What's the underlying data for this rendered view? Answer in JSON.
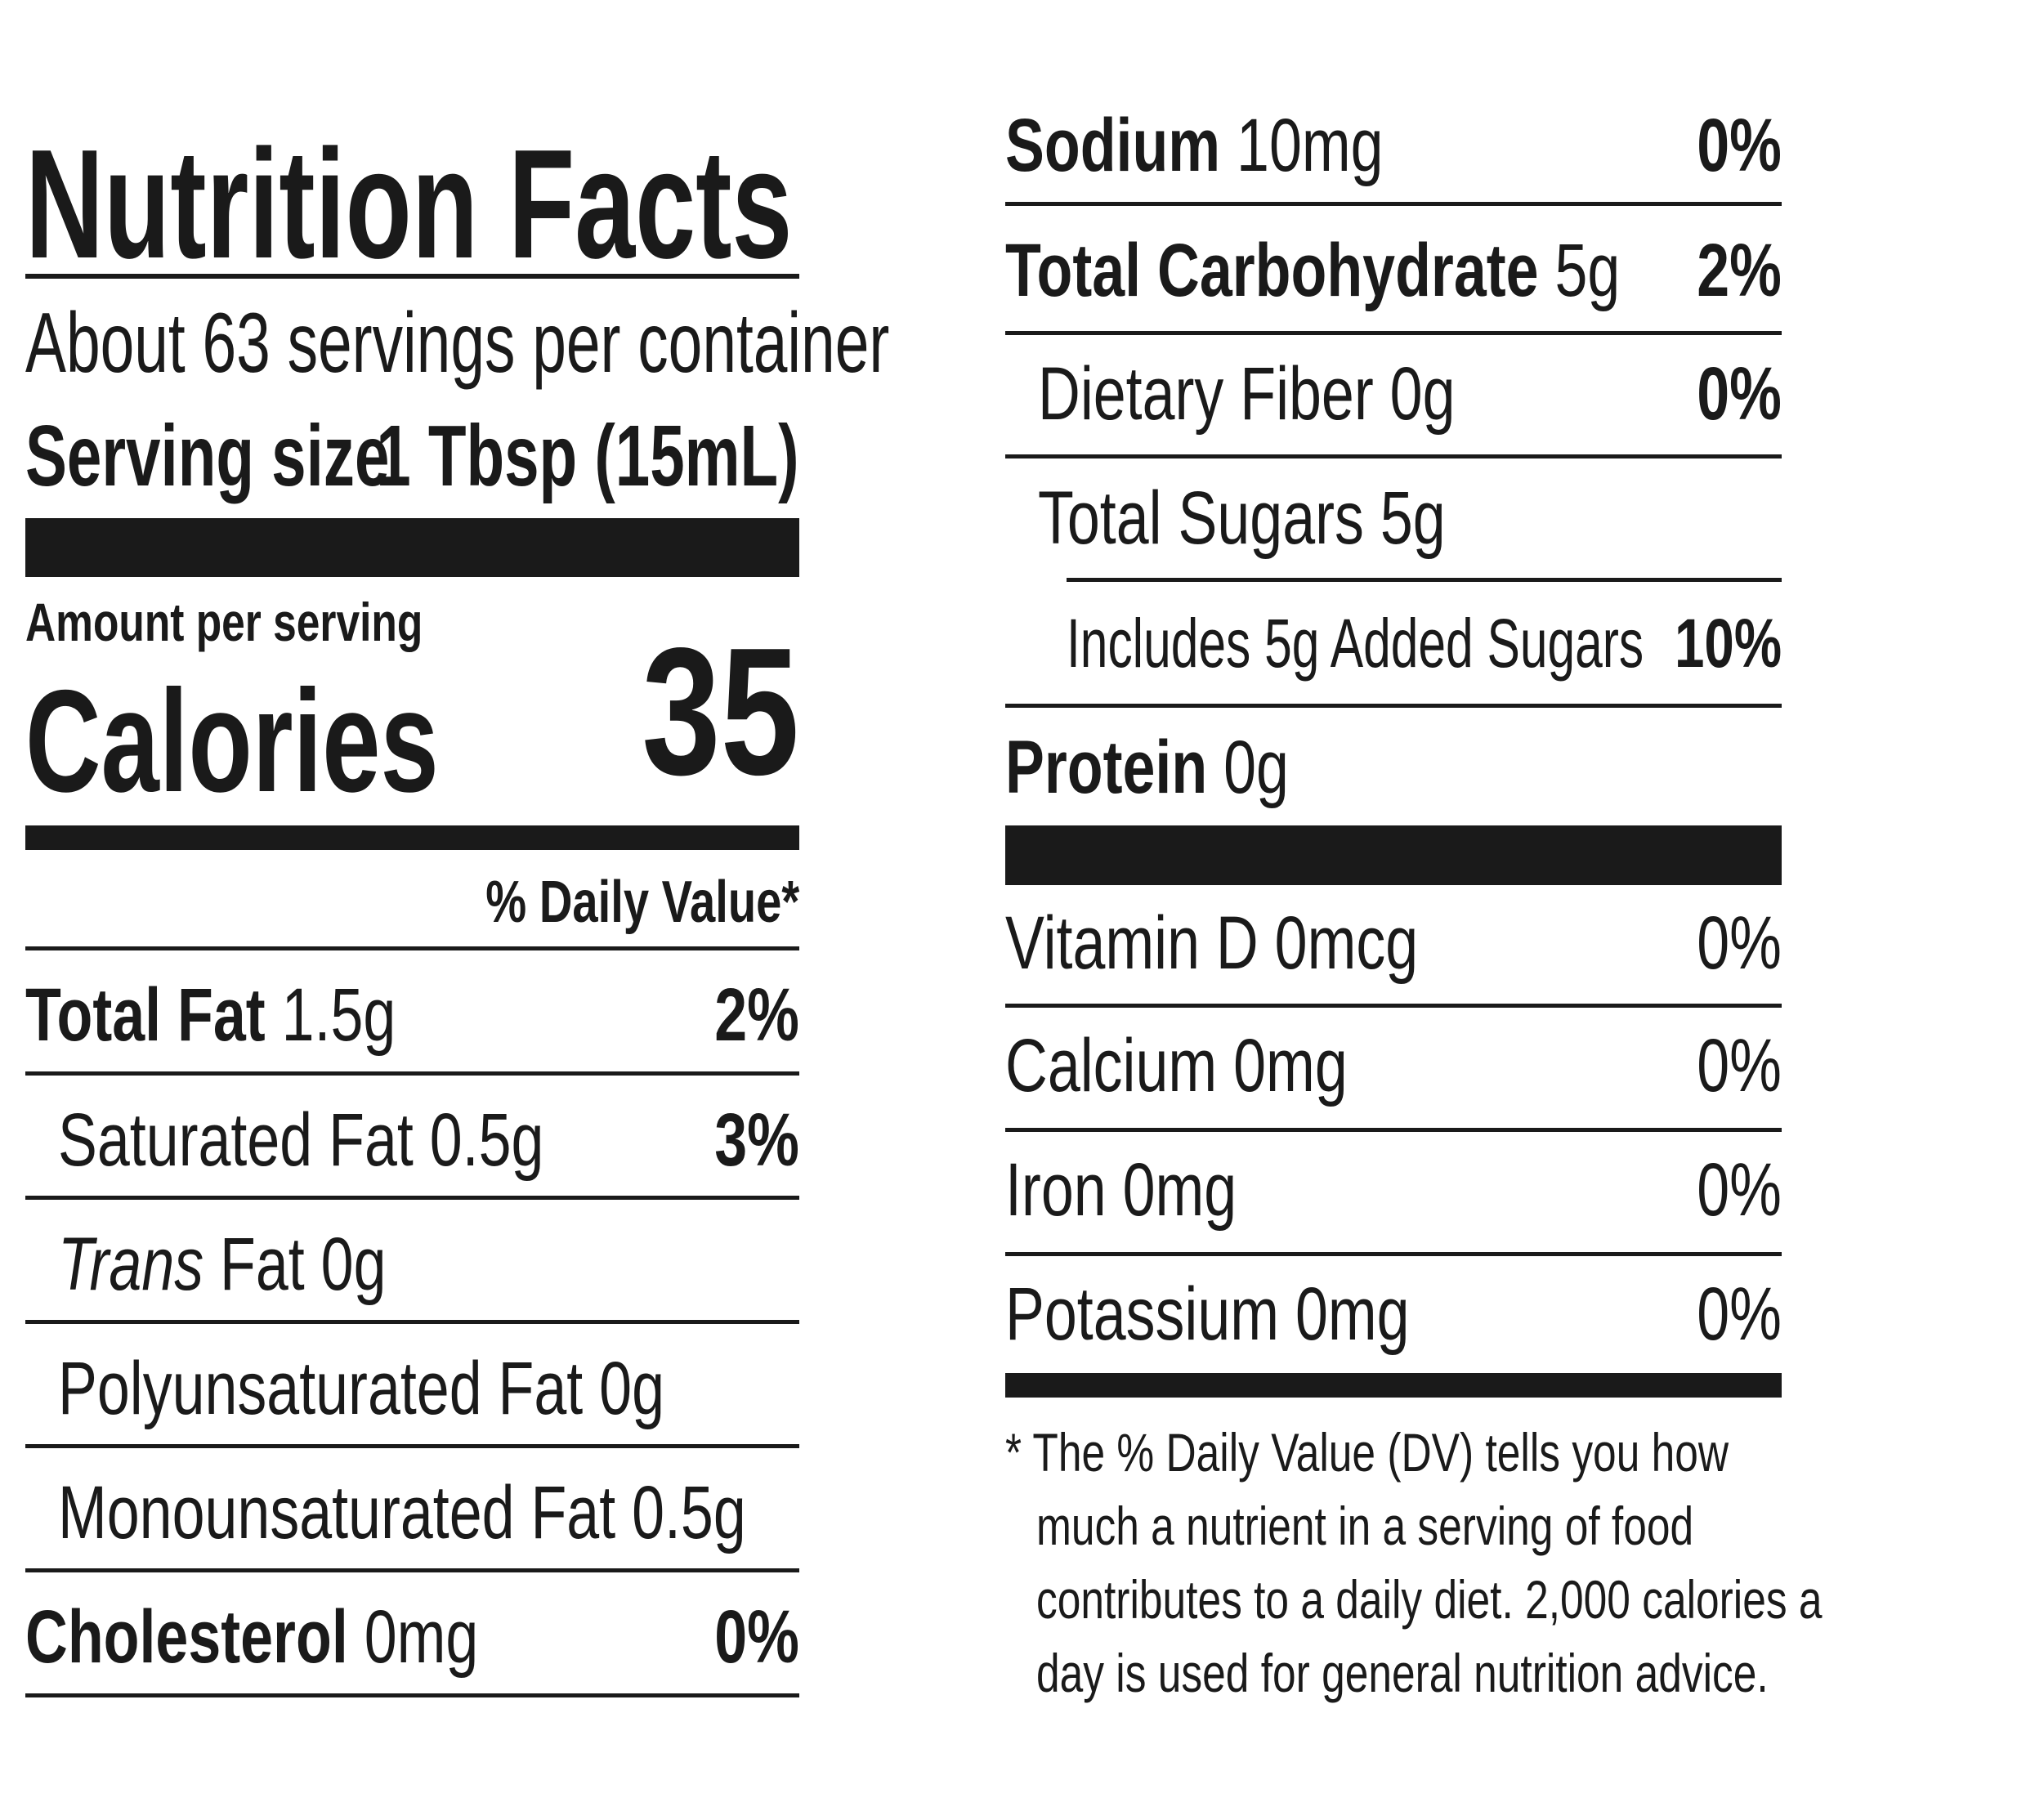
{
  "title": "Nutrition Facts",
  "servings_per_container": "About 63 servings per container",
  "serving_size_label": "Serving size",
  "serving_size_value": "1 Tbsp (15mL)",
  "amount_per_serving": "Amount per serving",
  "calories_label": "Calories",
  "calories_value": "35",
  "daily_value_header": "% Daily Value*",
  "left_rows": [
    {
      "name": "Total Fat",
      "amount": "1.5g",
      "dv": "2%"
    },
    {
      "name": "Saturated Fat",
      "amount": "0.5g",
      "dv": "3%"
    },
    {
      "name_italic": "Trans",
      "name": "Fat",
      "amount": "0g",
      "dv": ""
    },
    {
      "name": "Polyunsaturated Fat",
      "amount": "0g",
      "dv": ""
    },
    {
      "name": "Monounsaturated Fat",
      "amount": "0.5g",
      "dv": ""
    },
    {
      "name": "Cholesterol",
      "amount": "0mg",
      "dv": "0%"
    }
  ],
  "right_rows": [
    {
      "name": "Sodium",
      "amount": "10mg",
      "dv": "0%"
    },
    {
      "name": "Total Carbohydrate",
      "amount": "5g",
      "dv": "2%"
    },
    {
      "name": "Dietary Fiber",
      "amount": "0g",
      "dv": "0%"
    },
    {
      "name": "Total Sugars",
      "amount": "5g",
      "dv": ""
    },
    {
      "name": "Includes 5g Added Sugars",
      "amount": "",
      "dv": "10%"
    },
    {
      "name": "Protein",
      "amount": "0g",
      "dv": ""
    }
  ],
  "micros": [
    {
      "name": "Vitamin D",
      "amount": "0mcg",
      "dv": "0%"
    },
    {
      "name": "Calcium",
      "amount": "0mg",
      "dv": "0%"
    },
    {
      "name": "Iron",
      "amount": "0mg",
      "dv": "0%"
    },
    {
      "name": "Potassium",
      "amount": "0mg",
      "dv": "0%"
    }
  ],
  "footnote_lines": [
    "* The % Daily Value (DV) tells you how",
    "much a nutrient in a serving of food",
    "contributes to a daily diet. 2,000 calories a",
    "day is used for general nutrition advice."
  ]
}
